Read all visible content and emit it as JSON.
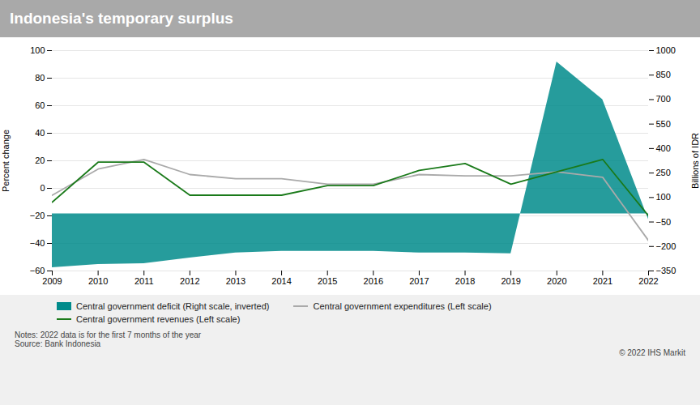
{
  "chart_data": {
    "type": "line",
    "title": "Indonesia's temporary surplus",
    "x": [
      2009,
      2010,
      2011,
      2012,
      2013,
      2014,
      2015,
      2016,
      2017,
      2018,
      2019,
      2020,
      2021,
      2022
    ],
    "xlim": [
      2009,
      2022
    ],
    "xticks": [
      2009,
      2010,
      2011,
      2012,
      2013,
      2014,
      2015,
      2016,
      2017,
      2018,
      2019,
      2020,
      2021,
      2022
    ],
    "ylabel": "Percent change",
    "y2label": "Billions of IDR",
    "ylim": [
      -60,
      100
    ],
    "yticks": [
      -60,
      -40,
      -20,
      0,
      20,
      40,
      60,
      80,
      100
    ],
    "y2lim": [
      -350,
      1000
    ],
    "y2ticks": [
      -350,
      -200,
      -50,
      100,
      250,
      400,
      550,
      700,
      850,
      1000
    ],
    "grid": true,
    "legend": "bottom",
    "series": [
      {
        "name": "Central government deficit (Right scale, inverted)",
        "type": "area",
        "axis": "y2",
        "color": "#008B8B",
        "values": [
          -330,
          -310,
          -305,
          -270,
          -240,
          -230,
          -230,
          -230,
          -240,
          -240,
          -245,
          930,
          700,
          -35
        ]
      },
      {
        "name": "Central government expenditures (Left scale)",
        "type": "line",
        "color": "#aaaaaa",
        "values": [
          -5,
          14,
          21,
          10,
          7,
          7,
          3,
          3,
          10,
          9,
          9,
          12,
          8,
          -38
        ]
      },
      {
        "name": "Central government revenues (Left scale)",
        "type": "line",
        "color": "#1a7a1a",
        "values": [
          -10,
          19,
          19,
          -5,
          -5,
          -5,
          2,
          2,
          13,
          18,
          3,
          12,
          21,
          -20
        ]
      }
    ],
    "notes": "Notes: 2022 data is for the first 7 months of the year\nSource: Bank Indonesia",
    "copyright": "© 2022  IHS Markit"
  }
}
